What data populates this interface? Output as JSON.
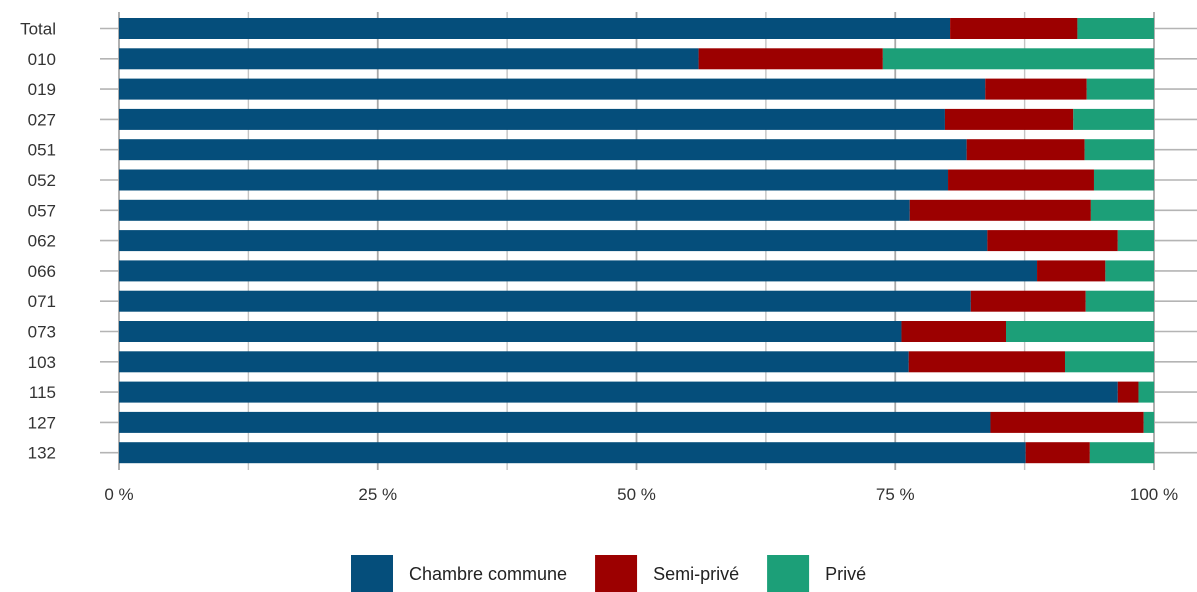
{
  "chart_data": {
    "type": "bar",
    "orientation": "horizontal",
    "stacked": true,
    "categories": [
      "Total",
      "010",
      "019",
      "027",
      "051",
      "052",
      "057",
      "062",
      "066",
      "071",
      "073",
      "103",
      "115",
      "127",
      "132"
    ],
    "series": [
      {
        "name": "Chambre commune",
        "color": "#054e7b",
        "values": [
          80.3,
          56.0,
          83.7,
          79.8,
          81.9,
          80.1,
          76.4,
          83.9,
          88.7,
          82.3,
          75.6,
          76.3,
          96.5,
          84.2,
          87.6
        ]
      },
      {
        "name": "Semi-privé",
        "color": "#9c0000",
        "values": [
          12.3,
          17.8,
          9.8,
          12.4,
          11.4,
          14.1,
          17.5,
          12.6,
          6.6,
          11.1,
          10.1,
          15.1,
          2.0,
          14.8,
          6.2
        ]
      },
      {
        "name": "Privé",
        "color": "#1c9f78",
        "values": [
          7.4,
          26.2,
          6.5,
          7.8,
          6.7,
          5.8,
          6.1,
          3.5,
          4.7,
          6.6,
          14.3,
          8.6,
          1.5,
          1.0,
          6.2
        ]
      }
    ],
    "x_ticks": [
      0,
      25,
      50,
      75,
      100
    ],
    "x_tick_labels": [
      "0 %",
      "25 %",
      "50 %",
      "75 %",
      "100 %"
    ],
    "xlim": [
      0,
      100
    ],
    "grid": true,
    "legend_position": "bottom",
    "title": "",
    "xlabel": "",
    "ylabel": ""
  }
}
